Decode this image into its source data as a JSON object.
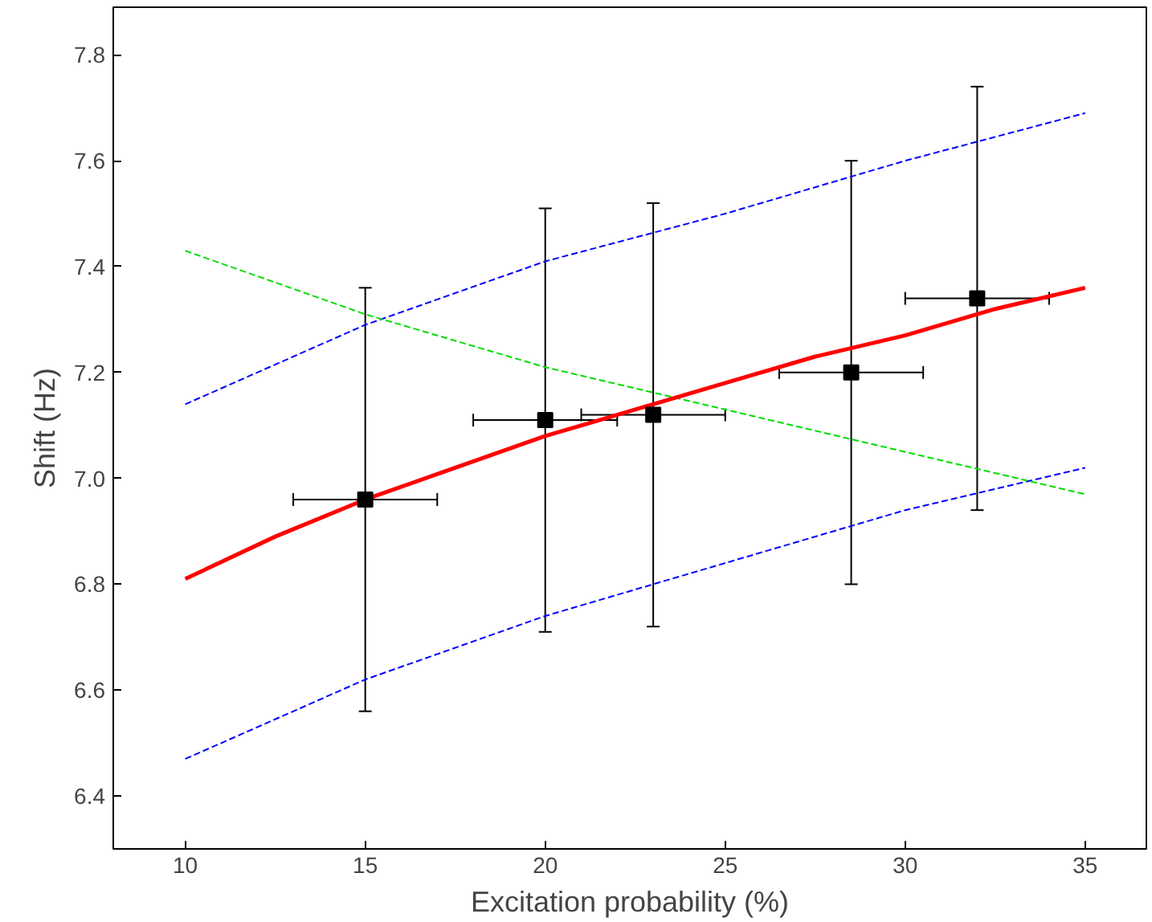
{
  "chart_data": {
    "type": "scatter",
    "xlabel": "Excitation probability (%)",
    "ylabel": "Shift (Hz)",
    "xlim": [
      8,
      36.7
    ],
    "ylim": [
      6.3,
      7.89
    ],
    "xticks": [
      10,
      15,
      20,
      25,
      30,
      35
    ],
    "yticks": [
      6.4,
      6.6,
      6.8,
      {
        "value": 7,
        "label": "7.0"
      },
      7.2,
      7.4,
      7.6,
      7.8
    ],
    "series": [
      {
        "type": "line",
        "color": "#0000ff",
        "line_style": "dashed",
        "x": [
          10,
          15,
          20,
          25,
          30,
          35
        ],
        "values": [
          7.14,
          7.29,
          7.41,
          7.5,
          7.6,
          7.69
        ]
      },
      {
        "type": "line",
        "color": "#0000ff",
        "line_style": "dashed",
        "x": [
          10,
          15,
          20,
          25,
          30,
          35
        ],
        "values": [
          6.47,
          6.62,
          6.74,
          6.84,
          6.94,
          7.02
        ]
      },
      {
        "type": "line",
        "color": "#00dd00",
        "line_style": "dashed",
        "x": [
          10,
          15,
          20,
          25,
          30,
          35
        ],
        "values": [
          7.43,
          7.31,
          7.21,
          7.13,
          7.05,
          6.97
        ]
      },
      {
        "type": "line",
        "color": "#ff0000",
        "line_style": "solid",
        "x": [
          10,
          12.5,
          15,
          17.5,
          20,
          22.5,
          25,
          27.5,
          30,
          32.5,
          35
        ],
        "values": [
          6.81,
          6.89,
          6.96,
          7.02,
          7.08,
          7.13,
          7.18,
          7.23,
          7.27,
          7.32,
          7.36
        ]
      },
      {
        "color": "#000000",
        "marker": "square",
        "x": [
          15,
          20,
          23,
          28.5,
          32
        ],
        "values": [
          6.96,
          7.11,
          7.12,
          7.2,
          7.34
        ],
        "errors": [
          0.4,
          0.4,
          0.4,
          0.4,
          0.4
        ],
        "xerrors": [
          2,
          2,
          2,
          2,
          2
        ]
      }
    ],
    "grid": false
  }
}
